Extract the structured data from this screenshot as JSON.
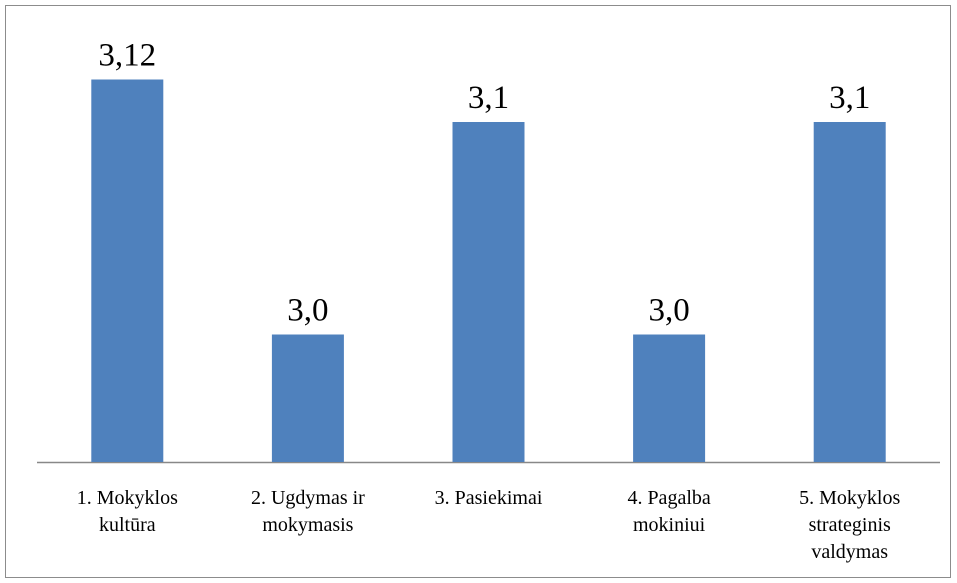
{
  "chart_data": {
    "type": "bar",
    "categories": [
      [
        "1. Mokyklos",
        "kultūra"
      ],
      [
        "2. Ugdymas ir",
        "mokymasis"
      ],
      [
        "3. Pasiekimai"
      ],
      [
        "4. Pagalba",
        "mokiniui"
      ],
      [
        "5. Mokyklos",
        "strateginis",
        "valdymas"
      ]
    ],
    "values": [
      3.12,
      3.0,
      3.1,
      3.0,
      3.1
    ],
    "value_labels": [
      "3,12",
      "3,0",
      "3,1",
      "3,0",
      "3,1"
    ],
    "color": "#4f81bd",
    "ylim": [
      2.94,
      3.148
    ]
  }
}
